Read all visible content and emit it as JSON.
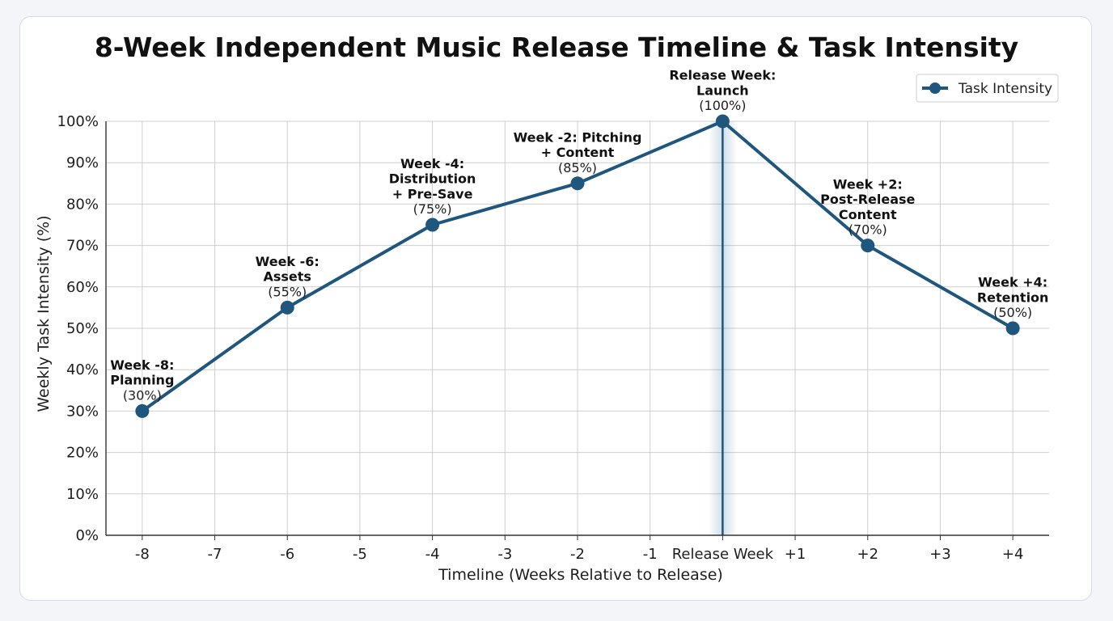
{
  "chart_data": {
    "type": "line",
    "title": "8-Week Independent Music Release Timeline & Task Intensity",
    "xlabel": "Timeline (Weeks Relative to Release)",
    "ylabel": "Weekly Task Intensity (%)",
    "ylim": [
      0,
      100
    ],
    "yticks": [
      "0%",
      "10%",
      "20%",
      "30%",
      "40%",
      "50%",
      "60%",
      "70%",
      "80%",
      "90%",
      "100%"
    ],
    "x_ticks": [
      -8,
      -7,
      -6,
      -5,
      -4,
      -3,
      -2,
      -1,
      0,
      1,
      2,
      3,
      4
    ],
    "x_tick_labels": [
      "-8",
      "-7",
      "-6",
      "-5",
      "-4",
      "-3",
      "-2",
      "-1",
      "Release Week",
      "+1",
      "+2",
      "+3",
      "+4"
    ],
    "grid": true,
    "legend": {
      "position": "top-right",
      "entries": [
        "Task Intensity"
      ]
    },
    "highlight_x": 0,
    "series": [
      {
        "name": "Task Intensity",
        "color": "#1f567d",
        "x": [
          -8,
          -6,
          -4,
          -2,
          0,
          2,
          4
        ],
        "values": [
          30,
          55,
          75,
          85,
          100,
          70,
          50
        ]
      }
    ],
    "annotations": [
      {
        "x": -8,
        "y": 30,
        "lines": [
          "Week -8:",
          "Planning"
        ],
        "value_label": "(30%)"
      },
      {
        "x": -6,
        "y": 55,
        "lines": [
          "Week -6:",
          "Assets"
        ],
        "value_label": "(55%)"
      },
      {
        "x": -4,
        "y": 75,
        "lines": [
          "Week -4:",
          "Distribution",
          "+ Pre-Save"
        ],
        "value_label": "(75%)"
      },
      {
        "x": -2,
        "y": 85,
        "lines": [
          "Week -2: Pitching",
          "+ Content"
        ],
        "value_label": "(85%)"
      },
      {
        "x": 0,
        "y": 100,
        "lines": [
          "Release Week:",
          "Launch"
        ],
        "value_label": "(100%)"
      },
      {
        "x": 2,
        "y": 70,
        "lines": [
          "Week +2:",
          "Post-Release",
          "Content"
        ],
        "value_label": "(70%)"
      },
      {
        "x": 4,
        "y": 50,
        "lines": [
          "Week +4:",
          "Retention"
        ],
        "value_label": "(50%)"
      }
    ]
  }
}
